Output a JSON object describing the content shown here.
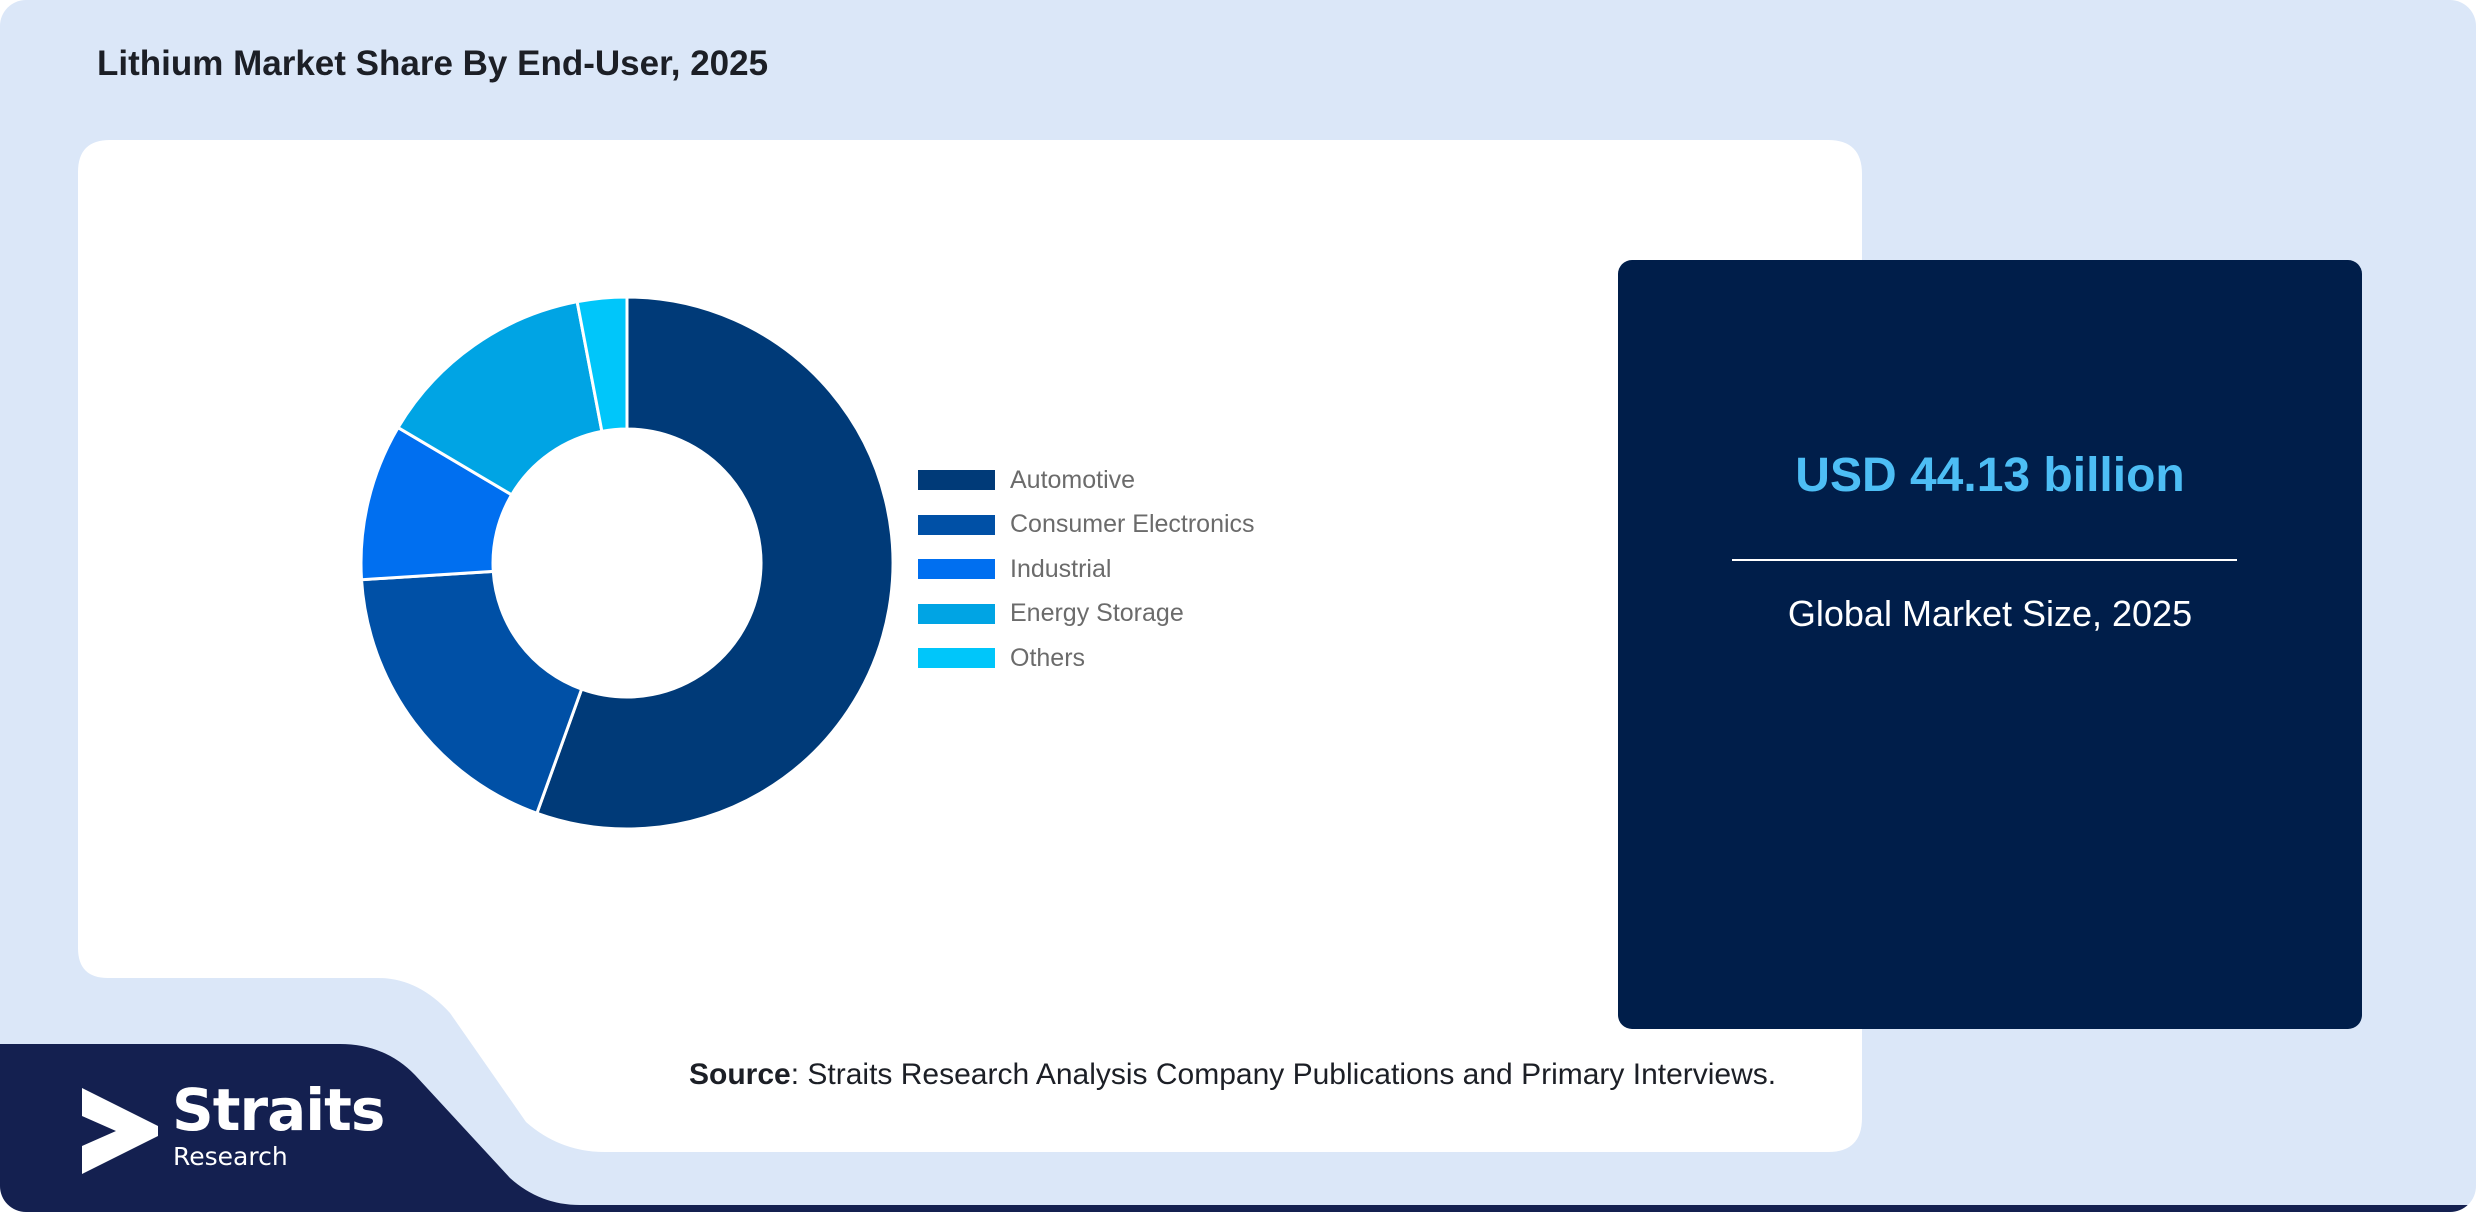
{
  "page": {
    "title": "Lithium Market Share By End-User, 2025"
  },
  "chart_data": {
    "type": "pie",
    "variant": "donut",
    "title": "Lithium Market Share By End-User, 2025",
    "categories": [
      "Automotive",
      "Consumer Electronics",
      "Industrial",
      "Energy Storage",
      "Others"
    ],
    "values": [
      55.5,
      18.5,
      9.5,
      13.5,
      3.0
    ],
    "colors": [
      "#003a78",
      "#0050a6",
      "#006ff0",
      "#00a4e4",
      "#00c6fa"
    ],
    "start_angle_deg": 0,
    "direction": "clockwise",
    "legend_position": "right"
  },
  "market_card": {
    "value": "USD 44.13 billion",
    "label": "Global Market Size, 2025"
  },
  "source": {
    "prefix": "Source",
    "text": ": Straits Research Analysis Company Publications and Primary Interviews."
  },
  "logo": {
    "name": "Straits",
    "subtitle": "Research",
    "icon": "straits-arrow-logo"
  },
  "colors": {
    "page_background": "#dbe7f8",
    "panel_background": "#ffffff",
    "card_background": "#001e4a",
    "footer_background": "#142050",
    "accent_value": "#4dbef5"
  }
}
